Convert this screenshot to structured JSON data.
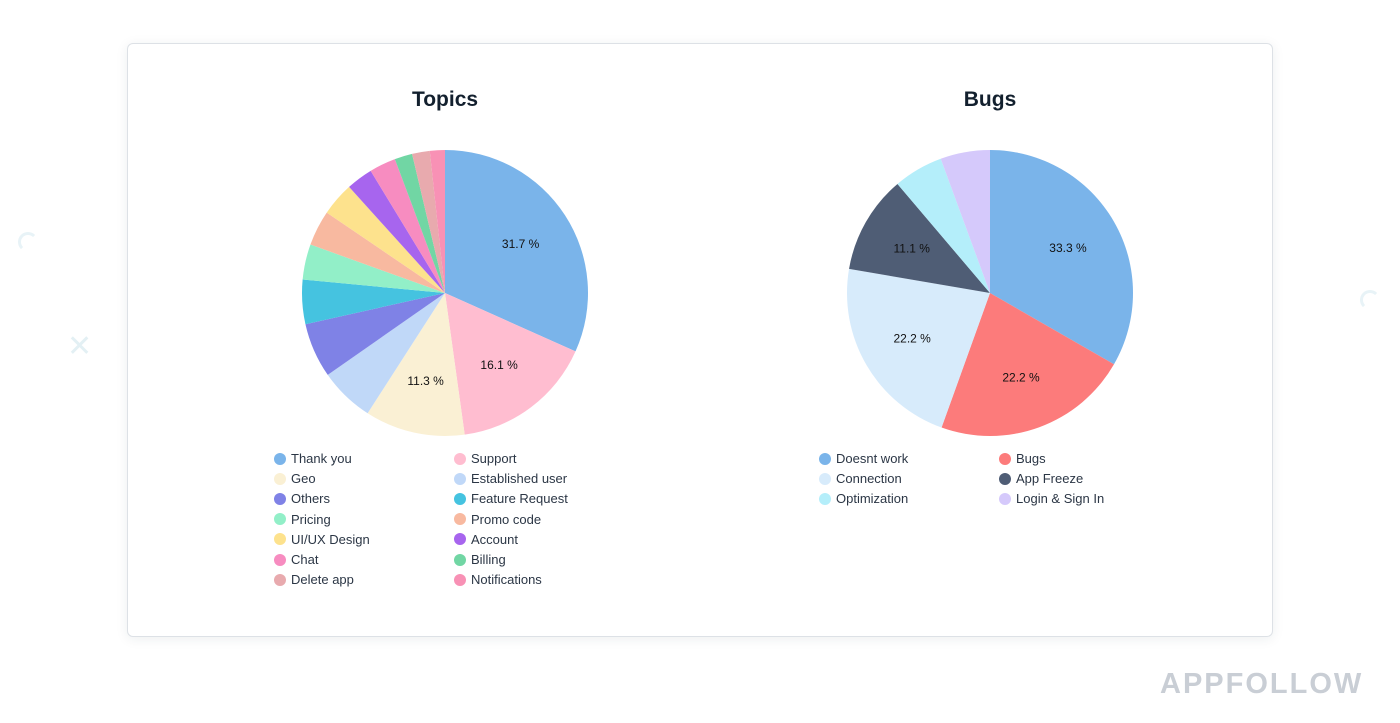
{
  "watermark": "APPFOLLOW",
  "chart_data": [
    {
      "type": "pie",
      "title": "Topics",
      "legend_position": "bottom",
      "slices": [
        {
          "name": "Thank you",
          "value": 31.7,
          "label": "31.7 %",
          "color": "#7ab4ea"
        },
        {
          "name": "Support",
          "value": 16.1,
          "label": "16.1 %",
          "color": "#ffbdd0"
        },
        {
          "name": "Geo",
          "value": 11.3,
          "label": "11.3 %",
          "color": "#faf0d4"
        },
        {
          "name": "Established user",
          "value": 6.2,
          "label": "",
          "color": "#c0d8f8"
        },
        {
          "name": "Others",
          "value": 6.2,
          "label": "",
          "color": "#7f82e6"
        },
        {
          "name": "Feature Request",
          "value": 5.0,
          "label": "",
          "color": "#45c3e0"
        },
        {
          "name": "Pricing",
          "value": 4.0,
          "label": "",
          "color": "#92efc8"
        },
        {
          "name": "Promo code",
          "value": 4.0,
          "label": "",
          "color": "#f8b9a0"
        },
        {
          "name": "UI/UX Design",
          "value": 3.8,
          "label": "",
          "color": "#fde28d"
        },
        {
          "name": "Account",
          "value": 3.0,
          "label": "",
          "color": "#a765ee"
        },
        {
          "name": "Chat",
          "value": 3.0,
          "label": "",
          "color": "#f78cc0"
        },
        {
          "name": "Billing",
          "value": 2.0,
          "label": "",
          "color": "#71d6a4"
        },
        {
          "name": "Delete app",
          "value": 2.0,
          "label": "",
          "color": "#e8aaae"
        },
        {
          "name": "Notifications",
          "value": 1.7,
          "label": "",
          "color": "#f891b5"
        }
      ]
    },
    {
      "type": "pie",
      "title": "Bugs",
      "legend_position": "bottom",
      "slices": [
        {
          "name": "Doesnt work",
          "value": 33.3,
          "label": "33.3 %",
          "color": "#7ab4ea"
        },
        {
          "name": "Bugs",
          "value": 22.2,
          "label": "22.2 %",
          "color": "#fc7b7b"
        },
        {
          "name": "Connection",
          "value": 22.2,
          "label": "22.2 %",
          "color": "#d7ebfb"
        },
        {
          "name": "App Freeze",
          "value": 11.1,
          "label": "11.1 %",
          "color": "#4f5d75"
        },
        {
          "name": "Optimization",
          "value": 5.6,
          "label": "",
          "color": "#b4eefa"
        },
        {
          "name": "Login & Sign In",
          "value": 5.6,
          "label": "",
          "color": "#d5c9fb"
        }
      ]
    }
  ],
  "legends": [
    {
      "items": [
        {
          "name": "Thank you",
          "color": "#7ab4ea"
        },
        {
          "name": "Support",
          "color": "#ffbdd0"
        },
        {
          "name": "Geo",
          "color": "#faf0d4"
        },
        {
          "name": "Established user",
          "color": "#c0d8f8"
        },
        {
          "name": "Others",
          "color": "#7f82e6"
        },
        {
          "name": "Feature Request",
          "color": "#45c3e0"
        },
        {
          "name": "Pricing",
          "color": "#92efc8"
        },
        {
          "name": "Promo code",
          "color": "#f8b9a0"
        },
        {
          "name": "UI/UX Design",
          "color": "#fde28d"
        },
        {
          "name": "Account",
          "color": "#a765ee"
        },
        {
          "name": "Chat",
          "color": "#f78cc0"
        },
        {
          "name": "Billing",
          "color": "#71d6a4"
        },
        {
          "name": "Delete app",
          "color": "#e8aaae"
        },
        {
          "name": "Notifications",
          "color": "#f891b5"
        }
      ]
    },
    {
      "items": [
        {
          "name": "Doesnt work",
          "color": "#7ab4ea"
        },
        {
          "name": "Bugs",
          "color": "#fc7b7b"
        },
        {
          "name": "Connection",
          "color": "#d7ebfb"
        },
        {
          "name": "App Freeze",
          "color": "#4f5d75"
        },
        {
          "name": "Optimization",
          "color": "#b4eefa"
        },
        {
          "name": "Login & Sign In",
          "color": "#d5c9fb"
        }
      ]
    }
  ]
}
